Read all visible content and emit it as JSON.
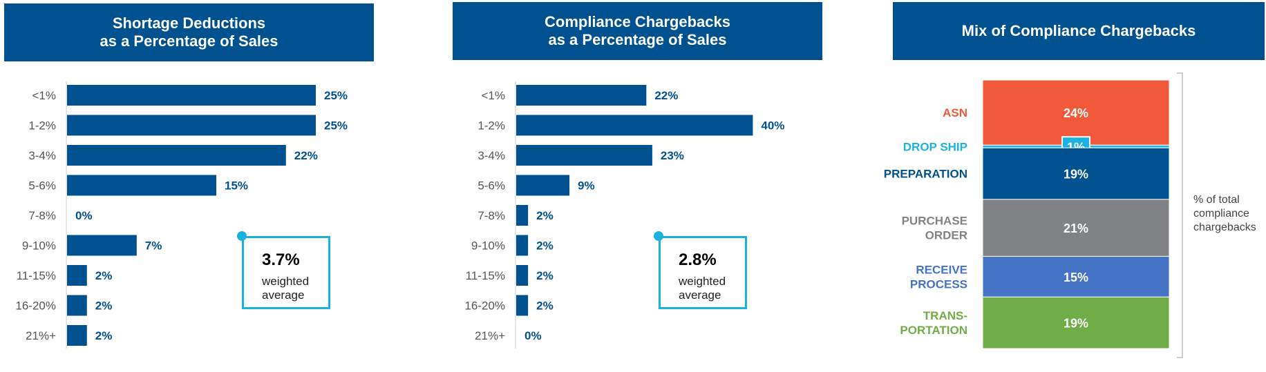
{
  "chart_data": [
    {
      "type": "bar",
      "orientation": "horizontal",
      "title": "Shortage Deductions as a Percentage of Sales",
      "title_lines": [
        "Shortage Deductions",
        "as a Percentage of Sales"
      ],
      "categories": [
        "<1%",
        "1-2%",
        "3-4%",
        "5-6%",
        "7-8%",
        "9-10%",
        "11-15%",
        "16-20%",
        "21%+"
      ],
      "values": [
        25,
        25,
        22,
        15,
        0,
        7,
        2,
        2,
        2
      ],
      "value_labels": [
        "25%",
        "25%",
        "22%",
        "15%",
        "0%",
        "7%",
        "2%",
        "2%",
        "2%"
      ],
      "callout": {
        "value": "3.7%",
        "line1": "weighted",
        "line2": "average"
      },
      "color": "#00518f",
      "xlim": [
        0,
        40
      ]
    },
    {
      "type": "bar",
      "orientation": "horizontal",
      "title": "Compliance Chargebacks as a Percentage of Sales",
      "title_lines": [
        "Compliance Chargebacks",
        "as a Percentage of Sales"
      ],
      "categories": [
        "<1%",
        "1-2%",
        "3-4%",
        "5-6%",
        "7-8%",
        "9-10%",
        "11-15%",
        "16-20%",
        "21%+"
      ],
      "values": [
        22,
        40,
        23,
        9,
        2,
        2,
        2,
        2,
        0
      ],
      "value_labels": [
        "22%",
        "40%",
        "23%",
        "9%",
        "2%",
        "2%",
        "2%",
        "2%",
        "0%"
      ],
      "callout": {
        "value": "2.8%",
        "line1": "weighted",
        "line2": "average"
      },
      "color": "#00518f",
      "xlim": [
        0,
        40
      ]
    },
    {
      "type": "bar",
      "orientation": "stacked-vertical",
      "title": "Mix of Compliance Chargebacks",
      "segments": [
        {
          "name": "ASN",
          "label_lines": [
            "ASN"
          ],
          "value": 24,
          "value_label": "24%",
          "color": "#f05a3a"
        },
        {
          "name": "DROP SHIP",
          "label_lines": [
            "DROP SHIP"
          ],
          "value": 1,
          "value_label": "1%",
          "color": "#1ab3e0"
        },
        {
          "name": "PREPARATION",
          "label_lines": [
            "PREPARATION"
          ],
          "value": 19,
          "value_label": "19%",
          "color": "#00518f"
        },
        {
          "name": "PURCHASE ORDER",
          "label_lines": [
            "PURCHASE",
            "ORDER"
          ],
          "value": 21,
          "value_label": "21%",
          "color": "#808285"
        },
        {
          "name": "RECEIVE PROCESS",
          "label_lines": [
            "RECEIVE",
            "PROCESS"
          ],
          "value": 15,
          "value_label": "15%",
          "color": "#4472c4"
        },
        {
          "name": "TRANSPORTATION",
          "label_lines": [
            "TRANS-",
            "PORTATION"
          ],
          "value": 19,
          "value_label": "19%",
          "color": "#70ad47"
        }
      ],
      "note_lines": [
        "% of total",
        "compliance",
        "chargebacks"
      ]
    }
  ]
}
